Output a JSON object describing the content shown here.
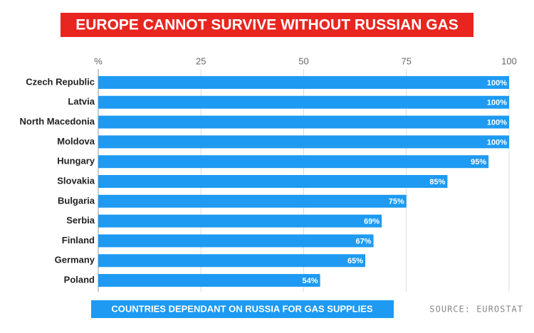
{
  "chart_data": {
    "type": "bar",
    "orientation": "horizontal",
    "title": "EUROPE CANNOT SURVIVE WITHOUT RUSSIAN GAS",
    "subtitle": "COUNTRIES DEPENDANT ON RUSSIA FOR GAS SUPPLIES",
    "source": "SOURCE: EUROSTAT",
    "categories": [
      "Czech Republic",
      "Latvia",
      "North Macedonia",
      "Moldova",
      "Hungary",
      "Slovakia",
      "Bulgaria",
      "Serbia",
      "Finland",
      "Germany",
      "Poland"
    ],
    "values": [
      100,
      100,
      100,
      100,
      95,
      85,
      75,
      69,
      67,
      65,
      54
    ],
    "value_labels": [
      "100%",
      "100%",
      "100%",
      "100%",
      "95%",
      "85%",
      "75%",
      "69%",
      "67%",
      "65%",
      "54%"
    ],
    "color": "#1e9af2",
    "xlim": [
      0,
      100
    ],
    "xticks": [
      {
        "value": 0,
        "label": "%"
      },
      25,
      50,
      75,
      100
    ],
    "grid": true
  }
}
